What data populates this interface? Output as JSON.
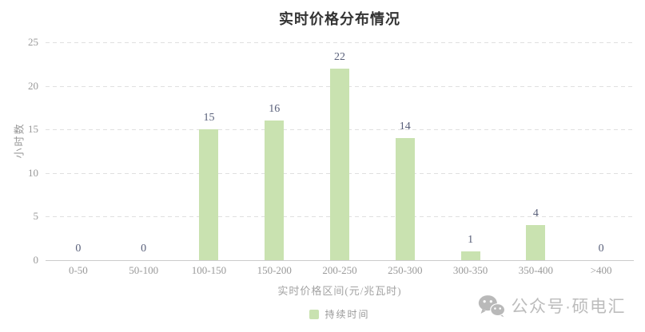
{
  "chart_data": {
    "type": "bar",
    "title": "实时价格分布情况",
    "categories": [
      "0-50",
      "50-100",
      "100-150",
      "150-200",
      "200-250",
      "250-300",
      "300-350",
      "350-400",
      ">400"
    ],
    "values": [
      0,
      0,
      15,
      16,
      22,
      14,
      1,
      4,
      0
    ],
    "series_name": "持续时间",
    "xlabel": "实时价格区间(元/兆瓦时)",
    "ylabel": "小时数",
    "ylim": [
      0,
      25
    ],
    "yticks": [
      0,
      5,
      10,
      15,
      20,
      25
    ],
    "grid": "horizontal dashed gridlines",
    "legend_position": "bottom center",
    "bar_color": "#c9e2b0",
    "value_label_color": "#59607a"
  },
  "legend": {
    "label": "持续时间",
    "swatch_color": "#c9e2b0"
  },
  "watermark": {
    "text": "公众号·硕电汇",
    "icon": "wechat-icon",
    "color": "#bcbcbc"
  }
}
